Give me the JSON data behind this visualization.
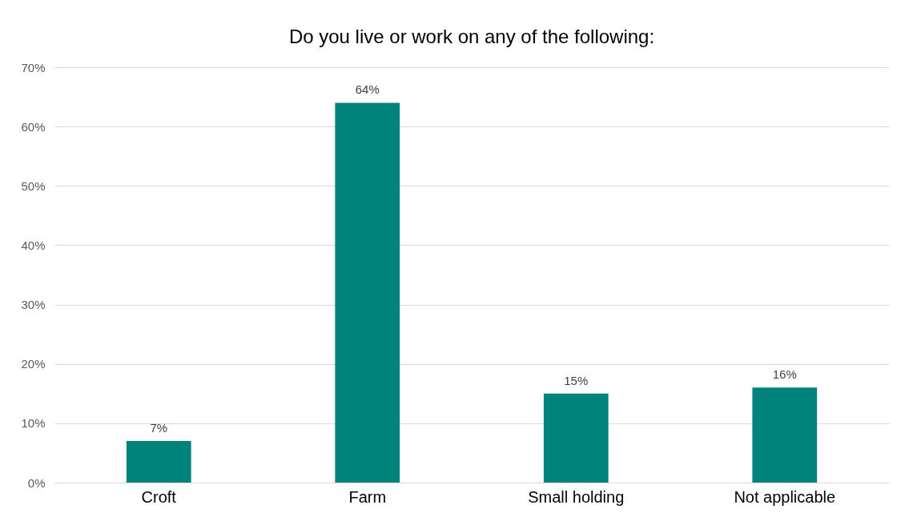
{
  "chart_data": {
    "type": "bar",
    "title": "Do you live or work on any of the following:",
    "categories": [
      "Croft",
      "Farm",
      "Small holding",
      "Not applicable"
    ],
    "values": [
      7,
      64,
      15,
      16
    ],
    "value_labels": [
      "7%",
      "64%",
      "15%",
      "16%"
    ],
    "color": "#00837b",
    "ylim": [
      0,
      70
    ],
    "yticks": [
      {
        "value": 0,
        "label": "0%"
      },
      {
        "value": 10,
        "label": "10%"
      },
      {
        "value": 20,
        "label": "20%"
      },
      {
        "value": 30,
        "label": "30%"
      },
      {
        "value": 40,
        "label": "40%"
      },
      {
        "value": 50,
        "label": "50%"
      },
      {
        "value": 60,
        "label": "60%"
      },
      {
        "value": 70,
        "label": "70%"
      }
    ],
    "grid": "y"
  }
}
